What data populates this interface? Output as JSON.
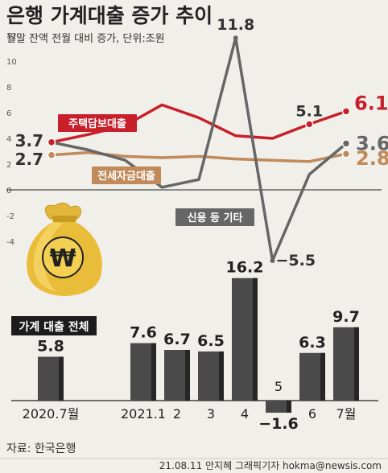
{
  "header": {
    "title": "은행 가계대출 증가 추이",
    "subtitle": "월말 잔액 전월 대비 증가, 단위:조원"
  },
  "chart_data": [
    {
      "type": "line",
      "y_ticks": [
        "12",
        "10",
        "8",
        "6",
        "4",
        "2",
        "0",
        "-2",
        "-4"
      ],
      "ylim": [
        -6,
        13
      ],
      "series": [
        {
          "name": "주택담보대출",
          "color": "#c8202a",
          "values": [
            3.7,
            4.3,
            5.0,
            6.6,
            5.6,
            4.2,
            4.0,
            5.1,
            6.1
          ],
          "labels": [
            "3.7",
            "5.1",
            "6.1"
          ]
        },
        {
          "name": "전세자금대출",
          "color": "#c08a5a",
          "values": [
            2.7,
            2.9,
            2.6,
            2.5,
            2.6,
            2.4,
            2.3,
            2.2,
            2.8
          ],
          "labels": [
            "2.7",
            "2.8"
          ]
        },
        {
          "name": "신용 등 기타",
          "color": "#666666",
          "values": [
            3.7,
            3.1,
            2.3,
            0.2,
            0.8,
            11.8,
            -5.5,
            1.2,
            3.6
          ],
          "labels": [
            "11.8",
            "−5.5",
            "3.6"
          ]
        }
      ]
    },
    {
      "type": "bar",
      "title": "가계 대출 전체",
      "categories": [
        "2020.7월",
        "2021.1",
        "2",
        "3",
        "4",
        "5",
        "6",
        "7월"
      ],
      "values": [
        5.8,
        7.6,
        6.7,
        6.5,
        16.2,
        -1.6,
        6.3,
        9.7
      ],
      "value_labels": [
        "5.8",
        "7.6",
        "6.7",
        "6.5",
        "16.2",
        "−1.6",
        "6.3",
        "9.7"
      ]
    }
  ],
  "icon": {
    "name": "money-bag-icon",
    "symbol": "₩"
  },
  "footer": {
    "source": "자료: 한국은행",
    "credit": "21.08.11 안지혜 그래픽기자 hokma@newsis.com"
  }
}
